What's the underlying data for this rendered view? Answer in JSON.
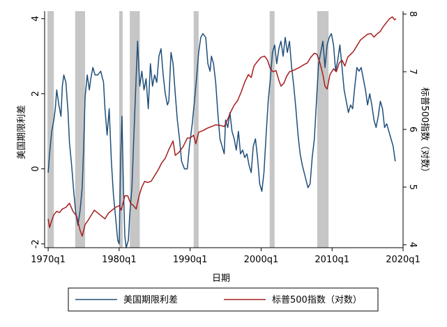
{
  "chart_data": {
    "type": "line",
    "title": "",
    "xlabel": "日期",
    "ylabel_left": "美国期限利差",
    "ylabel_right": "标普500指数（对数）",
    "x_range": [
      1969.5,
      2020.0
    ],
    "y_left_range": [
      -2.1,
      4.2
    ],
    "y_right_range": [
      3.95,
      8.05
    ],
    "x_ticks": [
      {
        "value": 1970,
        "label": "1970q1"
      },
      {
        "value": 1980,
        "label": "1980q1"
      },
      {
        "value": 1990,
        "label": "1990q1"
      },
      {
        "value": 2000,
        "label": "2000q1"
      },
      {
        "value": 2010,
        "label": "2010q1"
      },
      {
        "value": 2020,
        "label": "2020q1"
      }
    ],
    "y_left_ticks": [
      {
        "value": -2,
        "label": "-2"
      },
      {
        "value": 0,
        "label": "0"
      },
      {
        "value": 2,
        "label": "2"
      },
      {
        "value": 4,
        "label": "4"
      }
    ],
    "y_right_ticks": [
      {
        "value": 4,
        "label": "4"
      },
      {
        "value": 5,
        "label": "5"
      },
      {
        "value": 6,
        "label": "6"
      },
      {
        "value": 7,
        "label": "7"
      },
      {
        "value": 8,
        "label": "8"
      }
    ],
    "recessions": [
      [
        1969.9,
        1970.8
      ],
      [
        1973.8,
        1975.2
      ],
      [
        1980.0,
        1980.5
      ],
      [
        1981.5,
        1982.9
      ],
      [
        1990.5,
        1991.2
      ],
      [
        2001.2,
        2001.9
      ],
      [
        2007.9,
        2009.5
      ]
    ],
    "legend_position": "bottom",
    "grid": false,
    "colors": {
      "spread": "#1f4e79",
      "sp500": "#a61c1c",
      "recession": "#c6c6c6",
      "axis": "#000000"
    },
    "series": [
      {
        "name": "美国期限利差",
        "axis": "left",
        "points": [
          [
            1970.0,
            -0.1
          ],
          [
            1970.2,
            0.4
          ],
          [
            1970.5,
            1.0
          ],
          [
            1970.8,
            1.3
          ],
          [
            1971.0,
            1.6
          ],
          [
            1971.2,
            2.1
          ],
          [
            1971.5,
            1.7
          ],
          [
            1971.8,
            1.4
          ],
          [
            1972.0,
            2.2
          ],
          [
            1972.2,
            2.5
          ],
          [
            1972.5,
            2.3
          ],
          [
            1972.8,
            1.5
          ],
          [
            1973.0,
            0.7
          ],
          [
            1973.3,
            0.1
          ],
          [
            1973.6,
            -0.6
          ],
          [
            1973.9,
            -1.2
          ],
          [
            1974.2,
            -1.5
          ],
          [
            1974.5,
            -1.1
          ],
          [
            1974.8,
            -0.5
          ],
          [
            1975.0,
            0.6
          ],
          [
            1975.2,
            1.9
          ],
          [
            1975.5,
            2.5
          ],
          [
            1975.8,
            2.1
          ],
          [
            1976.0,
            2.4
          ],
          [
            1976.3,
            2.7
          ],
          [
            1976.6,
            2.5
          ],
          [
            1977.0,
            2.5
          ],
          [
            1977.4,
            2.6
          ],
          [
            1977.8,
            2.3
          ],
          [
            1978.0,
            1.6
          ],
          [
            1978.3,
            0.9
          ],
          [
            1978.6,
            1.6
          ],
          [
            1978.9,
            0.2
          ],
          [
            1979.2,
            -0.7
          ],
          [
            1979.5,
            -1.3
          ],
          [
            1979.8,
            -1.9
          ],
          [
            1980.0,
            -2.0
          ],
          [
            1980.2,
            0.2
          ],
          [
            1980.4,
            1.4
          ],
          [
            1980.6,
            -0.5
          ],
          [
            1980.8,
            -1.8
          ],
          [
            1981.0,
            -2.1
          ],
          [
            1981.3,
            -1.9
          ],
          [
            1981.5,
            -1.2
          ],
          [
            1981.8,
            -0.5
          ],
          [
            1982.0,
            0.5
          ],
          [
            1982.3,
            2.0
          ],
          [
            1982.6,
            3.4
          ],
          [
            1982.9,
            2.2
          ],
          [
            1983.2,
            2.6
          ],
          [
            1983.5,
            2.1
          ],
          [
            1983.8,
            2.4
          ],
          [
            1984.1,
            1.6
          ],
          [
            1984.4,
            2.8
          ],
          [
            1984.7,
            2.2
          ],
          [
            1985.0,
            2.5
          ],
          [
            1985.3,
            2.3
          ],
          [
            1985.6,
            3.0
          ],
          [
            1985.9,
            3.2
          ],
          [
            1986.2,
            2.5
          ],
          [
            1986.5,
            2.0
          ],
          [
            1986.8,
            1.7
          ],
          [
            1987.0,
            1.8
          ],
          [
            1987.3,
            3.1
          ],
          [
            1987.6,
            2.8
          ],
          [
            1987.9,
            2.0
          ],
          [
            1988.2,
            1.3
          ],
          [
            1988.5,
            0.8
          ],
          [
            1988.8,
            0.2
          ],
          [
            1989.2,
            0.0
          ],
          [
            1989.6,
            0.0
          ],
          [
            1989.9,
            0.6
          ],
          [
            1990.3,
            1.2
          ],
          [
            1990.6,
            1.8
          ],
          [
            1990.9,
            2.4
          ],
          [
            1991.2,
            3.1
          ],
          [
            1991.5,
            3.5
          ],
          [
            1991.8,
            3.6
          ],
          [
            1992.2,
            3.5
          ],
          [
            1992.5,
            2.8
          ],
          [
            1992.8,
            2.6
          ],
          [
            1993.0,
            3.0
          ],
          [
            1993.3,
            2.8
          ],
          [
            1993.6,
            2.3
          ],
          [
            1993.9,
            1.5
          ],
          [
            1994.2,
            0.8
          ],
          [
            1994.5,
            0.6
          ],
          [
            1994.8,
            0.4
          ],
          [
            1995.0,
            1.3
          ],
          [
            1995.3,
            1.1
          ],
          [
            1995.6,
            1.5
          ],
          [
            1995.9,
            1.0
          ],
          [
            1996.2,
            0.8
          ],
          [
            1996.5,
            0.5
          ],
          [
            1996.8,
            1.0
          ],
          [
            1997.1,
            0.4
          ],
          [
            1997.4,
            0.5
          ],
          [
            1997.7,
            0.3
          ],
          [
            1998.0,
            0.4
          ],
          [
            1998.3,
            0.1
          ],
          [
            1998.6,
            -0.1
          ],
          [
            1998.9,
            0.6
          ],
          [
            1999.2,
            0.8
          ],
          [
            1999.5,
            0.3
          ],
          [
            1999.8,
            -0.4
          ],
          [
            2000.1,
            -0.6
          ],
          [
            2000.4,
            -0.1
          ],
          [
            2000.7,
            0.9
          ],
          [
            2001.0,
            1.8
          ],
          [
            2001.3,
            2.4
          ],
          [
            2001.6,
            3.1
          ],
          [
            2001.9,
            3.3
          ],
          [
            2002.2,
            2.8
          ],
          [
            2002.5,
            3.2
          ],
          [
            2002.8,
            3.4
          ],
          [
            2003.1,
            3.0
          ],
          [
            2003.4,
            3.5
          ],
          [
            2003.7,
            3.1
          ],
          [
            2004.0,
            3.4
          ],
          [
            2004.3,
            2.7
          ],
          [
            2004.6,
            2.2
          ],
          [
            2004.9,
            1.6
          ],
          [
            2005.2,
            0.9
          ],
          [
            2005.5,
            0.4
          ],
          [
            2005.8,
            0.1
          ],
          [
            2006.2,
            -0.2
          ],
          [
            2006.6,
            -0.5
          ],
          [
            2006.9,
            -0.4
          ],
          [
            2007.2,
            0.3
          ],
          [
            2007.5,
            0.8
          ],
          [
            2007.8,
            1.8
          ],
          [
            2008.1,
            2.8
          ],
          [
            2008.4,
            3.1
          ],
          [
            2008.7,
            3.4
          ],
          [
            2009.0,
            2.7
          ],
          [
            2009.3,
            3.3
          ],
          [
            2009.6,
            3.5
          ],
          [
            2009.9,
            3.6
          ],
          [
            2010.2,
            3.3
          ],
          [
            2010.5,
            2.6
          ],
          [
            2010.8,
            2.9
          ],
          [
            2011.1,
            3.3
          ],
          [
            2011.4,
            2.7
          ],
          [
            2011.7,
            2.1
          ],
          [
            2012.0,
            1.8
          ],
          [
            2012.3,
            1.5
          ],
          [
            2012.6,
            1.7
          ],
          [
            2012.9,
            1.6
          ],
          [
            2013.2,
            2.2
          ],
          [
            2013.5,
            2.7
          ],
          [
            2013.8,
            2.6
          ],
          [
            2014.1,
            2.7
          ],
          [
            2014.4,
            2.4
          ],
          [
            2014.7,
            2.1
          ],
          [
            2015.0,
            1.7
          ],
          [
            2015.3,
            2.0
          ],
          [
            2015.6,
            1.7
          ],
          [
            2015.9,
            1.3
          ],
          [
            2016.2,
            1.1
          ],
          [
            2016.5,
            1.4
          ],
          [
            2016.8,
            1.8
          ],
          [
            2017.1,
            1.6
          ],
          [
            2017.4,
            1.1
          ],
          [
            2017.7,
            1.2
          ],
          [
            2018.0,
            1.0
          ],
          [
            2018.3,
            0.8
          ],
          [
            2018.6,
            0.6
          ],
          [
            2018.9,
            0.2
          ]
        ]
      },
      {
        "name": "标普500指数（对数）",
        "axis": "right",
        "points": [
          [
            1970.0,
            4.45
          ],
          [
            1970.2,
            4.3
          ],
          [
            1970.5,
            4.42
          ],
          [
            1970.8,
            4.52
          ],
          [
            1971.2,
            4.58
          ],
          [
            1971.6,
            4.56
          ],
          [
            1972.0,
            4.62
          ],
          [
            1972.5,
            4.65
          ],
          [
            1973.0,
            4.72
          ],
          [
            1973.5,
            4.58
          ],
          [
            1974.0,
            4.5
          ],
          [
            1974.5,
            4.25
          ],
          [
            1974.8,
            4.15
          ],
          [
            1975.2,
            4.35
          ],
          [
            1975.6,
            4.42
          ],
          [
            1976.0,
            4.5
          ],
          [
            1976.5,
            4.6
          ],
          [
            1977.0,
            4.55
          ],
          [
            1977.5,
            4.5
          ],
          [
            1978.0,
            4.45
          ],
          [
            1978.5,
            4.55
          ],
          [
            1979.0,
            4.6
          ],
          [
            1979.5,
            4.65
          ],
          [
            1980.0,
            4.68
          ],
          [
            1980.3,
            4.6
          ],
          [
            1980.8,
            4.85
          ],
          [
            1981.2,
            4.85
          ],
          [
            1981.6,
            4.72
          ],
          [
            1982.0,
            4.68
          ],
          [
            1982.4,
            4.62
          ],
          [
            1982.8,
            4.85
          ],
          [
            1983.2,
            5.0
          ],
          [
            1983.6,
            5.1
          ],
          [
            1984.0,
            5.08
          ],
          [
            1984.5,
            5.1
          ],
          [
            1985.0,
            5.2
          ],
          [
            1985.5,
            5.3
          ],
          [
            1986.0,
            5.42
          ],
          [
            1986.5,
            5.5
          ],
          [
            1987.0,
            5.65
          ],
          [
            1987.6,
            5.8
          ],
          [
            1987.9,
            5.55
          ],
          [
            1988.4,
            5.6
          ],
          [
            1989.0,
            5.7
          ],
          [
            1989.6,
            5.85
          ],
          [
            1990.0,
            5.85
          ],
          [
            1990.5,
            5.9
          ],
          [
            1990.8,
            5.75
          ],
          [
            1991.2,
            5.95
          ],
          [
            1991.8,
            5.98
          ],
          [
            1992.4,
            6.02
          ],
          [
            1993.0,
            6.05
          ],
          [
            1993.6,
            6.08
          ],
          [
            1994.2,
            6.07
          ],
          [
            1994.8,
            6.05
          ],
          [
            1995.2,
            6.15
          ],
          [
            1995.7,
            6.3
          ],
          [
            1996.2,
            6.42
          ],
          [
            1996.7,
            6.5
          ],
          [
            1997.2,
            6.65
          ],
          [
            1997.7,
            6.82
          ],
          [
            1998.2,
            6.95
          ],
          [
            1998.6,
            6.9
          ],
          [
            1999.0,
            7.1
          ],
          [
            1999.5,
            7.18
          ],
          [
            2000.0,
            7.25
          ],
          [
            2000.5,
            7.27
          ],
          [
            2000.9,
            7.2
          ],
          [
            2001.3,
            7.05
          ],
          [
            2001.7,
            7.0
          ],
          [
            2002.1,
            7.02
          ],
          [
            2002.5,
            6.85
          ],
          [
            2002.8,
            6.75
          ],
          [
            2003.2,
            6.8
          ],
          [
            2003.6,
            6.92
          ],
          [
            2004.0,
            7.0
          ],
          [
            2004.5,
            7.02
          ],
          [
            2005.0,
            7.05
          ],
          [
            2005.5,
            7.08
          ],
          [
            2006.0,
            7.12
          ],
          [
            2006.5,
            7.15
          ],
          [
            2007.0,
            7.25
          ],
          [
            2007.5,
            7.32
          ],
          [
            2007.9,
            7.3
          ],
          [
            2008.3,
            7.15
          ],
          [
            2008.7,
            6.95
          ],
          [
            2009.0,
            6.75
          ],
          [
            2009.3,
            6.7
          ],
          [
            2009.7,
            6.95
          ],
          [
            2010.2,
            7.05
          ],
          [
            2010.6,
            7.0
          ],
          [
            2011.0,
            7.15
          ],
          [
            2011.4,
            7.2
          ],
          [
            2011.8,
            7.1
          ],
          [
            2012.2,
            7.25
          ],
          [
            2012.6,
            7.3
          ],
          [
            2013.0,
            7.35
          ],
          [
            2013.5,
            7.45
          ],
          [
            2014.0,
            7.55
          ],
          [
            2014.5,
            7.6
          ],
          [
            2015.0,
            7.65
          ],
          [
            2015.5,
            7.66
          ],
          [
            2015.9,
            7.6
          ],
          [
            2016.3,
            7.65
          ],
          [
            2016.8,
            7.7
          ],
          [
            2017.2,
            7.78
          ],
          [
            2017.7,
            7.86
          ],
          [
            2018.1,
            7.92
          ],
          [
            2018.5,
            7.95
          ],
          [
            2018.8,
            7.9
          ],
          [
            2019.0,
            7.92
          ]
        ]
      }
    ]
  }
}
